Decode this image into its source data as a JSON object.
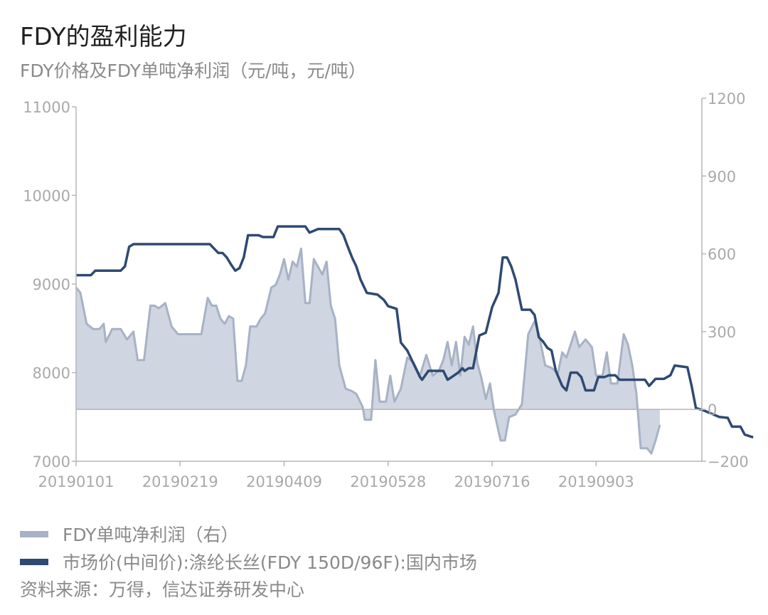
{
  "title": "FDY的盈利能力",
  "subtitle": "FDY价格及FDY单吨净利润（元/吨，元/吨）",
  "legend": [
    {
      "label": "FDY单吨净利润（右）",
      "color": "#a7b2c5"
    },
    {
      "label": "市场价(中间价):涤纶长丝(FDY 150D/96F):国内市场",
      "color": "#2e4a72"
    }
  ],
  "source": "资料来源：万得，信达证券研发中心",
  "chart_data": {
    "type": "line",
    "x_range": [
      "20190101",
      "20191001"
    ],
    "x_ticks": [
      "20190101",
      "20190219",
      "20190409",
      "20190528",
      "20190716",
      "20190903"
    ],
    "y_left": {
      "min": 7000,
      "max": 11000,
      "ticks": [
        7000,
        8000,
        9000,
        10000,
        11000
      ]
    },
    "y_right": {
      "min": -200,
      "max": 1200,
      "ticks": [
        -200,
        0,
        300,
        600,
        900,
        1200
      ]
    },
    "colors": {
      "profit_fill": "#cfd5e1",
      "profit_line": "#a7b2c5",
      "price_line": "#2e4a72",
      "axis": "#b5b5b5"
    },
    "series": [
      {
        "name": "FDY单吨净利润（右）",
        "axis": "right",
        "type": "area",
        "points": [
          [
            "20190101",
            470
          ],
          [
            "20190103",
            450
          ],
          [
            "20190106",
            330
          ],
          [
            "20190109",
            310
          ],
          [
            "20190112",
            310
          ],
          [
            "20190114",
            330
          ],
          [
            "20190115",
            260
          ],
          [
            "20190118",
            310
          ],
          [
            "20190122",
            310
          ],
          [
            "20190125",
            270
          ],
          [
            "20190128",
            300
          ],
          [
            "20190130",
            190
          ],
          [
            "20190202",
            190
          ],
          [
            "20190205",
            400
          ],
          [
            "20190207",
            400
          ],
          [
            "20190209",
            390
          ],
          [
            "20190212",
            410
          ],
          [
            "20190215",
            320
          ],
          [
            "20190218",
            290
          ],
          [
            "20190221",
            290
          ],
          [
            "20190226",
            290
          ],
          [
            "20190301",
            290
          ],
          [
            "20190304",
            430
          ],
          [
            "20190306",
            400
          ],
          [
            "20190308",
            400
          ],
          [
            "20190310",
            350
          ],
          [
            "20190312",
            330
          ],
          [
            "20190314",
            360
          ],
          [
            "20190316",
            350
          ],
          [
            "20190318",
            110
          ],
          [
            "20190320",
            110
          ],
          [
            "20190322",
            170
          ],
          [
            "20190324",
            320
          ],
          [
            "20190327",
            320
          ],
          [
            "20190329",
            350
          ],
          [
            "20190331",
            370
          ],
          [
            "20190403",
            470
          ],
          [
            "20190405",
            480
          ],
          [
            "20190407",
            520
          ],
          [
            "20190409",
            580
          ],
          [
            "20190411",
            500
          ],
          [
            "20190413",
            570
          ],
          [
            "20190415",
            550
          ],
          [
            "20190417",
            620
          ],
          [
            "20190419",
            410
          ],
          [
            "20190421",
            410
          ],
          [
            "20190423",
            580
          ],
          [
            "20190425",
            550
          ],
          [
            "20190427",
            520
          ],
          [
            "20190429",
            570
          ],
          [
            "20190501",
            400
          ],
          [
            "20190503",
            350
          ],
          [
            "20190505",
            170
          ],
          [
            "20190508",
            80
          ],
          [
            "20190511",
            70
          ],
          [
            "20190513",
            60
          ],
          [
            "20190516",
            10
          ],
          [
            "20190517",
            -40
          ],
          [
            "20190520",
            -40
          ],
          [
            "20190522",
            190
          ],
          [
            "20190524",
            30
          ],
          [
            "20190527",
            30
          ],
          [
            "20190529",
            130
          ],
          [
            "20190531",
            30
          ],
          [
            "20190603",
            80
          ],
          [
            "20190606",
            200
          ],
          [
            "20190609",
            180
          ],
          [
            "20190612",
            130
          ],
          [
            "20190615",
            210
          ],
          [
            "20190618",
            130
          ],
          [
            "20190621",
            150
          ],
          [
            "20190623",
            190
          ],
          [
            "20190625",
            260
          ],
          [
            "20190627",
            170
          ],
          [
            "20190629",
            260
          ],
          [
            "20190701",
            130
          ],
          [
            "20190703",
            280
          ],
          [
            "20190705",
            250
          ],
          [
            "20190707",
            320
          ],
          [
            "20190709",
            180
          ],
          [
            "20190711",
            120
          ],
          [
            "20190713",
            40
          ],
          [
            "20190715",
            100
          ],
          [
            "20190717",
            -10
          ],
          [
            "20190720",
            -120
          ],
          [
            "20190722",
            -120
          ],
          [
            "20190724",
            -30
          ],
          [
            "20190727",
            -20
          ],
          [
            "20190730",
            20
          ],
          [
            "20190802",
            290
          ],
          [
            "20190805",
            340
          ],
          [
            "20190807",
            290
          ],
          [
            "20190810",
            170
          ],
          [
            "20190813",
            160
          ],
          [
            "20190816",
            140
          ],
          [
            "20190818",
            220
          ],
          [
            "20190820",
            200
          ],
          [
            "20190822",
            250
          ],
          [
            "20190824",
            300
          ],
          [
            "20190826",
            240
          ],
          [
            "20190829",
            270
          ],
          [
            "20190901",
            240
          ],
          [
            "20190903",
            130
          ],
          [
            "20190906",
            130
          ],
          [
            "20190908",
            220
          ],
          [
            "20190910",
            100
          ],
          [
            "20190913",
            100
          ],
          [
            "20190916",
            290
          ],
          [
            "20190918",
            250
          ],
          [
            "20190920",
            170
          ],
          [
            "20190922",
            60
          ],
          [
            "20190924",
            -150
          ],
          [
            "20190927",
            -150
          ],
          [
            "20190929",
            -170
          ],
          [
            "20191001",
            -120
          ],
          [
            "20191003",
            -60
          ]
        ]
      },
      {
        "name": "市场价(中间价):涤纶长丝(FDY 150D/96F):国内市场",
        "axis": "left",
        "type": "line",
        "points": [
          [
            "20190101",
            9100
          ],
          [
            "20190108",
            9100
          ],
          [
            "20190110",
            9150
          ],
          [
            "20190122",
            9150
          ],
          [
            "20190124",
            9200
          ],
          [
            "20190126",
            9420
          ],
          [
            "20190128",
            9450
          ],
          [
            "20190305",
            9450
          ],
          [
            "20190307",
            9400
          ],
          [
            "20190309",
            9350
          ],
          [
            "20190311",
            9350
          ],
          [
            "20190313",
            9300
          ],
          [
            "20190315",
            9220
          ],
          [
            "20190317",
            9150
          ],
          [
            "20190319",
            9180
          ],
          [
            "20190321",
            9300
          ],
          [
            "20190323",
            9550
          ],
          [
            "20190328",
            9550
          ],
          [
            "20190330",
            9530
          ],
          [
            "20190404",
            9530
          ],
          [
            "20190406",
            9650
          ],
          [
            "20190419",
            9650
          ],
          [
            "20190421",
            9580
          ],
          [
            "20190423",
            9600
          ],
          [
            "20190425",
            9620
          ],
          [
            "20190505",
            9620
          ],
          [
            "20190507",
            9550
          ],
          [
            "20190509",
            9420
          ],
          [
            "20190511",
            9300
          ],
          [
            "20190513",
            9200
          ],
          [
            "20190515",
            9050
          ],
          [
            "20190518",
            8900
          ],
          [
            "20190523",
            8880
          ],
          [
            "20190526",
            8820
          ],
          [
            "20190528",
            8750
          ],
          [
            "20190601",
            8720
          ],
          [
            "20190603",
            8340
          ],
          [
            "20190606",
            8250
          ],
          [
            "20190609",
            8100
          ],
          [
            "20190612",
            7950
          ],
          [
            "20190613",
            7920
          ],
          [
            "20190616",
            8020
          ],
          [
            "20190623",
            8020
          ],
          [
            "20190625",
            7920
          ],
          [
            "20190627",
            7950
          ],
          [
            "20190630",
            8000
          ],
          [
            "20190702",
            8050
          ],
          [
            "20190703",
            8020
          ],
          [
            "20190705",
            8050
          ],
          [
            "20190707",
            8050
          ],
          [
            "20190710",
            8420
          ],
          [
            "20190713",
            8450
          ],
          [
            "20190716",
            8740
          ],
          [
            "20190719",
            8900
          ],
          [
            "20190721",
            9300
          ],
          [
            "20190723",
            9300
          ],
          [
            "20190725",
            9200
          ],
          [
            "20190727",
            9050
          ],
          [
            "20190730",
            8710
          ],
          [
            "20190803",
            8710
          ],
          [
            "20190805",
            8650
          ],
          [
            "20190807",
            8400
          ],
          [
            "20190809",
            8350
          ],
          [
            "20190811",
            8280
          ],
          [
            "20190813",
            8250
          ],
          [
            "20190815",
            8020
          ],
          [
            "20190818",
            7850
          ],
          [
            "20190820",
            7800
          ],
          [
            "20190822",
            8000
          ],
          [
            "20190825",
            8000
          ],
          [
            "20190827",
            7950
          ],
          [
            "20190829",
            7800
          ],
          [
            "20190902",
            7800
          ],
          [
            "20190904",
            7950
          ],
          [
            "20190907",
            7950
          ],
          [
            "20190909",
            7970
          ],
          [
            "20190912",
            7970
          ],
          [
            "20190914",
            7920
          ],
          [
            "20190926",
            7920
          ],
          [
            "20190928",
            7850
          ],
          [
            "20191001",
            7930
          ],
          [
            "20191005",
            7930
          ],
          [
            "20191008",
            7970
          ],
          [
            "20191010",
            8080
          ],
          [
            "20191016",
            8060
          ],
          [
            "20191018",
            7850
          ],
          [
            "20191020",
            7600
          ],
          [
            "20191023",
            7580
          ],
          [
            "20191027",
            7540
          ],
          [
            "20191031",
            7500
          ],
          [
            "20191104",
            7490
          ],
          [
            "20191106",
            7390
          ],
          [
            "20191110",
            7390
          ],
          [
            "20191112",
            7300
          ],
          [
            "20191116",
            7270
          ]
        ]
      }
    ]
  }
}
